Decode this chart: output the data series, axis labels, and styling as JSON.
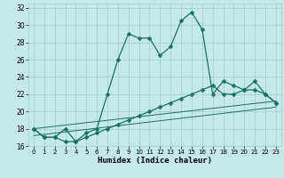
{
  "xlabel": "Humidex (Indice chaleur)",
  "xlim": [
    -0.5,
    23.5
  ],
  "ylim": [
    16,
    32.5
  ],
  "yticks": [
    16,
    18,
    20,
    22,
    24,
    26,
    28,
    30,
    32
  ],
  "xticks": [
    0,
    1,
    2,
    3,
    4,
    5,
    6,
    7,
    8,
    9,
    10,
    11,
    12,
    13,
    14,
    15,
    16,
    17,
    18,
    19,
    20,
    21,
    22,
    23
  ],
  "bg_color": "#c5e8e8",
  "grid_color": "#9ecece",
  "line_color": "#1a7068",
  "curve1_x": [
    0,
    1,
    2,
    3,
    4,
    5,
    6,
    7,
    8,
    9,
    10,
    11,
    12,
    13,
    14,
    15,
    16,
    17,
    18,
    19,
    20,
    21,
    22,
    23
  ],
  "curve1_y": [
    18.0,
    17.0,
    17.0,
    18.0,
    16.5,
    17.5,
    18.0,
    22.0,
    26.0,
    29.0,
    28.5,
    28.5,
    26.5,
    27.5,
    30.5,
    31.5,
    29.5,
    22.0,
    23.5,
    23.0,
    22.5,
    23.5,
    22.0,
    21.0
  ],
  "curve2_x": [
    0,
    1,
    2,
    3,
    4,
    5,
    6,
    7,
    8,
    9,
    10,
    11,
    12,
    13,
    14,
    15,
    16,
    17,
    18,
    19,
    20,
    21,
    22,
    23
  ],
  "curve2_y": [
    18.0,
    17.0,
    17.0,
    16.5,
    16.5,
    17.0,
    17.5,
    18.0,
    18.5,
    19.0,
    19.5,
    20.0,
    20.5,
    21.0,
    21.5,
    22.0,
    22.5,
    23.0,
    22.0,
    22.0,
    22.5,
    22.5,
    22.0,
    21.0
  ],
  "refline1_x": [
    0,
    23
  ],
  "refline1_y": [
    18.0,
    21.2
  ],
  "refline2_x": [
    0,
    23
  ],
  "refline2_y": [
    17.2,
    20.5
  ],
  "marker_size": 2.5,
  "line_width": 0.9
}
